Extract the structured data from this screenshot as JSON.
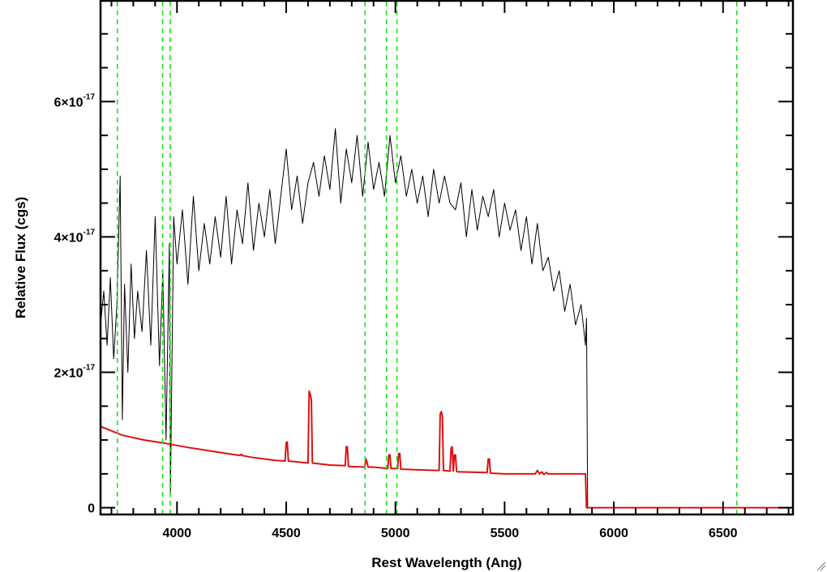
{
  "chart_data": {
    "type": "line",
    "xlabel": "Rest Wavelength (Ang)",
    "ylabel": "Relative Flux (cgs)",
    "xlim": [
      3650,
      6820
    ],
    "ylim": [
      -1e-18,
      7.5e-17
    ],
    "x_ticks": [
      {
        "value": 4000,
        "label": "4000"
      },
      {
        "value": 4500,
        "label": "4500"
      },
      {
        "value": 5000,
        "label": "5000"
      },
      {
        "value": 5500,
        "label": "5500"
      },
      {
        "value": 6000,
        "label": "6000"
      },
      {
        "value": 6500,
        "label": "6500"
      }
    ],
    "y_ticks": [
      {
        "value": 0,
        "mantissa": "0",
        "exponent": ""
      },
      {
        "value": 2e-17,
        "mantissa": "2×10",
        "exponent": "-17"
      },
      {
        "value": 4e-17,
        "mantissa": "4×10",
        "exponent": "-17"
      },
      {
        "value": 6e-17,
        "mantissa": "6×10",
        "exponent": "-17"
      }
    ],
    "grid": false,
    "vertical_lines": [
      3727,
      3934,
      3969,
      4861,
      4959,
      5007,
      6563
    ],
    "series": [
      {
        "role": "observed spectrum",
        "color": "#000000",
        "x": [
          3650,
          3665,
          3680,
          3695,
          3710,
          3725,
          3740,
          3750,
          3760,
          3775,
          3790,
          3805,
          3820,
          3840,
          3860,
          3880,
          3900,
          3920,
          3935,
          3950,
          3965,
          3970,
          3985,
          4000,
          4025,
          4050,
          4075,
          4100,
          4125,
          4150,
          4175,
          4200,
          4225,
          4250,
          4275,
          4300,
          4325,
          4350,
          4375,
          4400,
          4425,
          4450,
          4475,
          4500,
          4525,
          4550,
          4575,
          4600,
          4625,
          4650,
          4675,
          4700,
          4725,
          4750,
          4775,
          4800,
          4825,
          4850,
          4875,
          4900,
          4925,
          4950,
          4975,
          5000,
          5025,
          5050,
          5075,
          5100,
          5125,
          5150,
          5175,
          5200,
          5225,
          5250,
          5275,
          5300,
          5325,
          5350,
          5375,
          5400,
          5425,
          5450,
          5475,
          5500,
          5525,
          5550,
          5575,
          5600,
          5625,
          5650,
          5675,
          5700,
          5725,
          5750,
          5775,
          5800,
          5825,
          5850,
          5870,
          5875,
          5880
        ],
        "y": [
          2.7e-17,
          3.2e-17,
          2.4e-17,
          3.4e-17,
          2.2e-17,
          3e-17,
          4.9e-17,
          1.3e-17,
          3.3e-17,
          2e-17,
          3.6e-17,
          2.5e-17,
          3.2e-17,
          2.6e-17,
          3.8e-17,
          2.4e-17,
          4.3e-17,
          2.1e-17,
          3.5e-17,
          1e-17,
          3.9e-17,
          2e-18,
          4.3e-17,
          3.6e-17,
          4.4e-17,
          3.3e-17,
          4.6e-17,
          3.5e-17,
          4.2e-17,
          3.6e-17,
          4.3e-17,
          3.7e-17,
          4.6e-17,
          3.6e-17,
          4.4e-17,
          3.9e-17,
          4.8e-17,
          3.8e-17,
          4.5e-17,
          4e-17,
          4.7e-17,
          3.9e-17,
          4.6e-17,
          5.3e-17,
          4.4e-17,
          4.9e-17,
          4.2e-17,
          4.8e-17,
          5.1e-17,
          4.6e-17,
          5.2e-17,
          4.7e-17,
          5.6e-17,
          4.5e-17,
          5.3e-17,
          4.8e-17,
          5.5e-17,
          4.6e-17,
          5.4e-17,
          4.7e-17,
          5.1e-17,
          4.6e-17,
          5.5e-17,
          4.8e-17,
          5.2e-17,
          4.6e-17,
          5e-17,
          4.5e-17,
          4.9e-17,
          4.3e-17,
          5e-17,
          4.5e-17,
          4.9e-17,
          4.5e-17,
          4.4e-17,
          4.8e-17,
          4e-17,
          4.7e-17,
          4.1e-17,
          4.6e-17,
          4.3e-17,
          4.7e-17,
          4e-17,
          4.5e-17,
          4.1e-17,
          4.4e-17,
          3.8e-17,
          4.3e-17,
          3.6e-17,
          4.2e-17,
          3.5e-17,
          3.7e-17,
          3.2e-17,
          3.5e-17,
          2.9e-17,
          3.3e-17,
          2.7e-17,
          3e-17,
          2.4e-17,
          2.8e-17,
          0.0
        ]
      },
      {
        "role": "model continuum and lines",
        "color": "#dd1111",
        "x": [
          3650,
          3750,
          3850,
          3950,
          4050,
          4150,
          4250,
          4290,
          4295,
          4300,
          4350,
          4450,
          4495,
          4500,
          4505,
          4510,
          4600,
          4605,
          4610,
          4615,
          4620,
          4700,
          4770,
          4775,
          4780,
          4785,
          4860,
          4865,
          4870,
          4875,
          4900,
          4965,
          4970,
          4975,
          4980,
          5010,
          5015,
          5020,
          5025,
          5100,
          5200,
          5205,
          5210,
          5215,
          5220,
          5250,
          5255,
          5260,
          5265,
          5270,
          5275,
          5280,
          5285,
          5290,
          5420,
          5425,
          5430,
          5435,
          5500,
          5640,
          5650,
          5660,
          5670,
          5680,
          5690,
          5700,
          5750,
          5800,
          5870,
          5875,
          5880,
          6000,
          6200,
          6400,
          6600,
          6820
        ],
        "y": [
          1.2e-17,
          1.07e-17,
          1e-17,
          9.5e-18,
          8.9e-18,
          8.4e-18,
          7.9e-18,
          7.7e-18,
          7.9e-18,
          7.7e-18,
          7.4e-18,
          7e-18,
          6.9e-18,
          9.6e-18,
          9.7e-18,
          6.9e-18,
          6.6e-18,
          1.72e-17,
          1.68e-17,
          1.6e-17,
          6.6e-18,
          6.3e-18,
          6.2e-18,
          9e-18,
          9e-18,
          6.1e-18,
          6e-18,
          7.2e-18,
          6.7e-18,
          6e-18,
          6e-18,
          5.8e-18,
          7.8e-18,
          7.8e-18,
          5.8e-18,
          5.8e-18,
          8e-18,
          8e-18,
          5.7e-18,
          5.6e-18,
          5.5e-18,
          1.38e-17,
          1.42e-17,
          1.35e-17,
          5.5e-18,
          5.4e-18,
          8.8e-18,
          9e-18,
          5.4e-18,
          7.8e-18,
          7.8e-18,
          5.4e-18,
          5.3e-18,
          5.3e-18,
          5.2e-18,
          7.2e-18,
          7.2e-18,
          5.1e-18,
          5e-18,
          5e-18,
          5.5e-18,
          5e-18,
          5.3e-18,
          4.9e-18,
          5.2e-18,
          5e-18,
          5e-18,
          5e-18,
          5e-18,
          0.0,
          0.0,
          0.0,
          0.0,
          0.0,
          0.0,
          0.0
        ]
      }
    ]
  },
  "colors": {
    "spectrum": "#000000",
    "model": "#dd1111",
    "marker_lines": "#22dd22"
  }
}
